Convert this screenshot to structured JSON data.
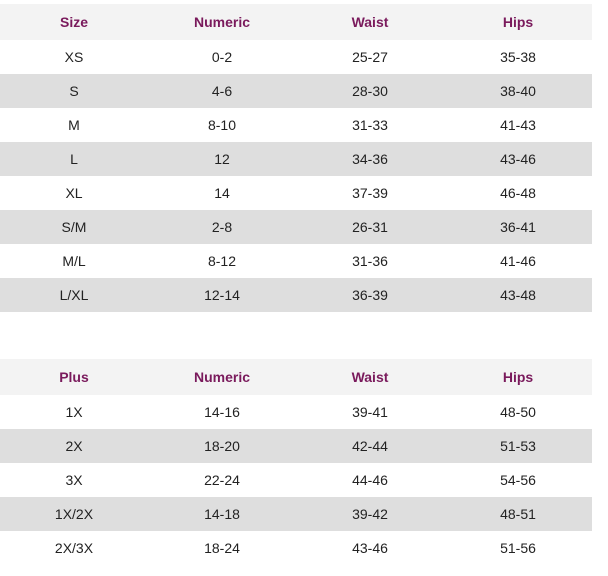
{
  "table1": {
    "header": [
      "Size",
      "Numeric",
      "Waist",
      "Hips"
    ],
    "rows": [
      [
        "XS",
        "0-2",
        "25-27",
        "35-38"
      ],
      [
        "S",
        "4-6",
        "28-30",
        "38-40"
      ],
      [
        "M",
        "8-10",
        "31-33",
        "41-43"
      ],
      [
        "L",
        "12",
        "34-36",
        "43-46"
      ],
      [
        "XL",
        "14",
        "37-39",
        "46-48"
      ],
      [
        "S/M",
        "2-8",
        "26-31",
        "36-41"
      ],
      [
        "M/L",
        "8-12",
        "31-36",
        "41-46"
      ],
      [
        "L/XL",
        "12-14",
        "36-39",
        "43-48"
      ]
    ]
  },
  "table2": {
    "header": [
      "Plus",
      "Numeric",
      "Waist",
      "Hips"
    ],
    "rows": [
      [
        "1X",
        "14-16",
        "39-41",
        "48-50"
      ],
      [
        "2X",
        "18-20",
        "42-44",
        "51-53"
      ],
      [
        "3X",
        "22-24",
        "44-46",
        "54-56"
      ],
      [
        "1X/2X",
        "14-18",
        "39-42",
        "48-51"
      ],
      [
        "2X/3X",
        "18-24",
        "43-46",
        "51-56"
      ]
    ]
  }
}
